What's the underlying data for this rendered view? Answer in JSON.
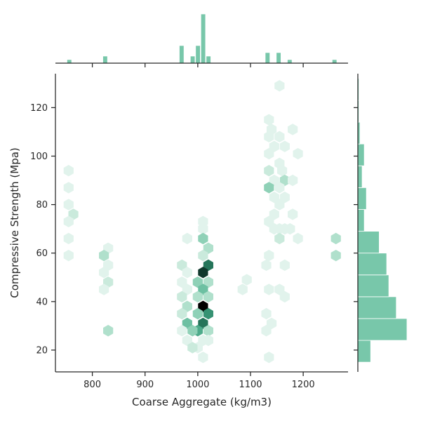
{
  "chart_data": {
    "type": "hexbin",
    "xlabel": "Coarse Aggregate (kg/m3)",
    "ylabel": "Compressive Strength (Mpa)",
    "xlim": [
      730,
      1285
    ],
    "ylim": [
      11,
      134
    ],
    "xticks": [
      800,
      900,
      1000,
      1100,
      1200
    ],
    "yticks": [
      20,
      40,
      60,
      80,
      100,
      120
    ],
    "grid": false,
    "colors": {
      "light": "#e1f3ec",
      "dark": "#000000",
      "bar_fill": "#78c7aa",
      "axis": "#262626"
    },
    "hexbins": [
      {
        "x": 755,
        "y": 94,
        "count": 1
      },
      {
        "x": 755,
        "y": 87,
        "count": 1
      },
      {
        "x": 755,
        "y": 80,
        "count": 1
      },
      {
        "x": 764,
        "y": 76,
        "count": 2
      },
      {
        "x": 755,
        "y": 73,
        "count": 1
      },
      {
        "x": 755,
        "y": 66,
        "count": 1
      },
      {
        "x": 755,
        "y": 59,
        "count": 1
      },
      {
        "x": 830,
        "y": 62,
        "count": 1
      },
      {
        "x": 822,
        "y": 59,
        "count": 3
      },
      {
        "x": 830,
        "y": 55,
        "count": 1
      },
      {
        "x": 822,
        "y": 52,
        "count": 1
      },
      {
        "x": 830,
        "y": 48,
        "count": 2
      },
      {
        "x": 822,
        "y": 45,
        "count": 1
      },
      {
        "x": 830,
        "y": 28,
        "count": 3
      },
      {
        "x": 1010,
        "y": 73,
        "count": 1
      },
      {
        "x": 1010,
        "y": 70,
        "count": 1
      },
      {
        "x": 1010,
        "y": 66,
        "count": 4
      },
      {
        "x": 980,
        "y": 66,
        "count": 1
      },
      {
        "x": 1020,
        "y": 62,
        "count": 3
      },
      {
        "x": 1010,
        "y": 59,
        "count": 2
      },
      {
        "x": 1020,
        "y": 55,
        "count": 8
      },
      {
        "x": 970,
        "y": 55,
        "count": 2
      },
      {
        "x": 1010,
        "y": 52,
        "count": 10
      },
      {
        "x": 980,
        "y": 52,
        "count": 1
      },
      {
        "x": 1020,
        "y": 48,
        "count": 3
      },
      {
        "x": 1000,
        "y": 48,
        "count": 4
      },
      {
        "x": 970,
        "y": 48,
        "count": 1
      },
      {
        "x": 1010,
        "y": 45,
        "count": 5
      },
      {
        "x": 980,
        "y": 45,
        "count": 1
      },
      {
        "x": 1020,
        "y": 42,
        "count": 3
      },
      {
        "x": 1000,
        "y": 42,
        "count": 3
      },
      {
        "x": 970,
        "y": 42,
        "count": 2
      },
      {
        "x": 1010,
        "y": 38,
        "count": 12
      },
      {
        "x": 980,
        "y": 38,
        "count": 3
      },
      {
        "x": 1020,
        "y": 35,
        "count": 7
      },
      {
        "x": 1000,
        "y": 35,
        "count": 4
      },
      {
        "x": 970,
        "y": 35,
        "count": 2
      },
      {
        "x": 1010,
        "y": 31,
        "count": 8
      },
      {
        "x": 980,
        "y": 31,
        "count": 5
      },
      {
        "x": 1020,
        "y": 28,
        "count": 3
      },
      {
        "x": 1000,
        "y": 28,
        "count": 6
      },
      {
        "x": 990,
        "y": 28,
        "count": 4
      },
      {
        "x": 970,
        "y": 28,
        "count": 1
      },
      {
        "x": 1010,
        "y": 24,
        "count": 1
      },
      {
        "x": 980,
        "y": 24,
        "count": 1
      },
      {
        "x": 1020,
        "y": 24,
        "count": 1
      },
      {
        "x": 1000,
        "y": 21,
        "count": 1
      },
      {
        "x": 990,
        "y": 21,
        "count": 2
      },
      {
        "x": 1010,
        "y": 17,
        "count": 1
      },
      {
        "x": 1093,
        "y": 49,
        "count": 1
      },
      {
        "x": 1085,
        "y": 45,
        "count": 1
      },
      {
        "x": 1155,
        "y": 129,
        "count": 1
      },
      {
        "x": 1135,
        "y": 115,
        "count": 1
      },
      {
        "x": 1140,
        "y": 111,
        "count": 1
      },
      {
        "x": 1180,
        "y": 111,
        "count": 1
      },
      {
        "x": 1135,
        "y": 108,
        "count": 1
      },
      {
        "x": 1155,
        "y": 108,
        "count": 1
      },
      {
        "x": 1145,
        "y": 104,
        "count": 1
      },
      {
        "x": 1165,
        "y": 104,
        "count": 1
      },
      {
        "x": 1190,
        "y": 101,
        "count": 1
      },
      {
        "x": 1135,
        "y": 101,
        "count": 1
      },
      {
        "x": 1155,
        "y": 97,
        "count": 1
      },
      {
        "x": 1135,
        "y": 94,
        "count": 2
      },
      {
        "x": 1160,
        "y": 94,
        "count": 1
      },
      {
        "x": 1165,
        "y": 90,
        "count": 3
      },
      {
        "x": 1180,
        "y": 90,
        "count": 1
      },
      {
        "x": 1145,
        "y": 90,
        "count": 1
      },
      {
        "x": 1135,
        "y": 87,
        "count": 4
      },
      {
        "x": 1155,
        "y": 87,
        "count": 1
      },
      {
        "x": 1165,
        "y": 83,
        "count": 1
      },
      {
        "x": 1145,
        "y": 83,
        "count": 1
      },
      {
        "x": 1155,
        "y": 80,
        "count": 1
      },
      {
        "x": 1145,
        "y": 76,
        "count": 1
      },
      {
        "x": 1180,
        "y": 76,
        "count": 1
      },
      {
        "x": 1135,
        "y": 73,
        "count": 1
      },
      {
        "x": 1145,
        "y": 70,
        "count": 1
      },
      {
        "x": 1155,
        "y": 70,
        "count": 1
      },
      {
        "x": 1165,
        "y": 70,
        "count": 1
      },
      {
        "x": 1190,
        "y": 66,
        "count": 1
      },
      {
        "x": 1155,
        "y": 66,
        "count": 2
      },
      {
        "x": 1175,
        "y": 70,
        "count": 1
      },
      {
        "x": 1135,
        "y": 59,
        "count": 1
      },
      {
        "x": 1130,
        "y": 55,
        "count": 1
      },
      {
        "x": 1165,
        "y": 55,
        "count": 1
      },
      {
        "x": 1135,
        "y": 45,
        "count": 1
      },
      {
        "x": 1155,
        "y": 45,
        "count": 1
      },
      {
        "x": 1165,
        "y": 42,
        "count": 1
      },
      {
        "x": 1130,
        "y": 35,
        "count": 1
      },
      {
        "x": 1140,
        "y": 31,
        "count": 1
      },
      {
        "x": 1130,
        "y": 28,
        "count": 1
      },
      {
        "x": 1135,
        "y": 17,
        "count": 1
      },
      {
        "x": 1262,
        "y": 66,
        "count": 3
      },
      {
        "x": 1262,
        "y": 59,
        "count": 3
      }
    ],
    "x_marginal": {
      "bins": [
        {
          "x0": 752,
          "x1": 762,
          "count": 1
        },
        {
          "x0": 820,
          "x1": 830,
          "count": 2
        },
        {
          "x0": 965,
          "x1": 975,
          "count": 5
        },
        {
          "x0": 986,
          "x1": 996,
          "count": 2
        },
        {
          "x0": 996,
          "x1": 1006,
          "count": 5
        },
        {
          "x0": 1006,
          "x1": 1016,
          "count": 14
        },
        {
          "x0": 1016,
          "x1": 1026,
          "count": 2
        },
        {
          "x0": 1128,
          "x1": 1138,
          "count": 3
        },
        {
          "x0": 1149,
          "x1": 1159,
          "count": 3
        },
        {
          "x0": 1170,
          "x1": 1180,
          "count": 1
        },
        {
          "x0": 1255,
          "x1": 1265,
          "count": 1
        }
      ]
    },
    "y_marginal": {
      "bins": [
        {
          "y0": 15,
          "y1": 24,
          "count": 12
        },
        {
          "y0": 24,
          "y1": 33,
          "count": 46
        },
        {
          "y0": 33,
          "y1": 42,
          "count": 36
        },
        {
          "y0": 42,
          "y1": 51,
          "count": 29
        },
        {
          "y0": 51,
          "y1": 60,
          "count": 27
        },
        {
          "y0": 60,
          "y1": 69,
          "count": 20
        },
        {
          "y0": 69,
          "y1": 78,
          "count": 6
        },
        {
          "y0": 78,
          "y1": 87,
          "count": 8
        },
        {
          "y0": 87,
          "y1": 96,
          "count": 4
        },
        {
          "y0": 96,
          "y1": 105,
          "count": 6
        },
        {
          "y0": 105,
          "y1": 114,
          "count": 2
        },
        {
          "y0": 114,
          "y1": 123,
          "count": 1
        },
        {
          "y0": 123,
          "y1": 132,
          "count": 1
        }
      ]
    }
  }
}
